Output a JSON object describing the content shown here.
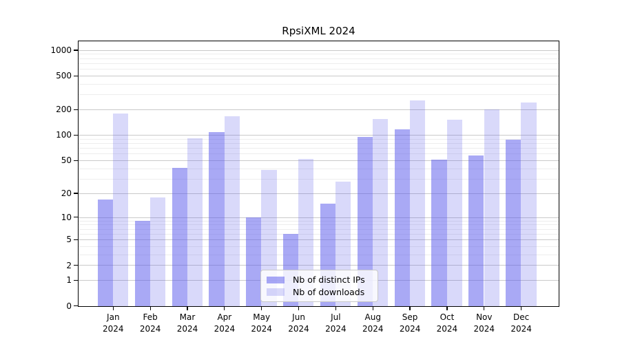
{
  "chart_data": {
    "type": "bar",
    "title": "RpsiXML 2024",
    "year": "2024",
    "categories": [
      "Jan",
      "Feb",
      "Mar",
      "Apr",
      "May",
      "Jun",
      "Jul",
      "Aug",
      "Sep",
      "Oct",
      "Nov",
      "Dec"
    ],
    "series": [
      {
        "name": "Nb of distinct IPs",
        "color": "rgba(90,90,235,0.52)",
        "values": [
          17,
          9,
          41,
          109,
          10,
          6,
          15,
          96,
          118,
          51,
          58,
          89
        ]
      },
      {
        "name": "Nb of downloads",
        "color": "rgba(90,90,235,0.23)",
        "values": [
          180,
          18,
          93,
          167,
          39,
          52,
          28,
          156,
          260,
          153,
          204,
          245
        ]
      }
    ],
    "yscale": "log1p",
    "ylim": [
      0,
      1265
    ],
    "yticks": [
      0,
      1,
      2,
      5,
      10,
      20,
      50,
      100,
      200,
      500,
      1000
    ],
    "minor_ticks": [
      3,
      4,
      6,
      7,
      8,
      9,
      30,
      40,
      60,
      70,
      80,
      90,
      300,
      400,
      600,
      700,
      800,
      900
    ],
    "grid": "horizontal",
    "legend_position": "lower-center-inside",
    "colors": {
      "major_grid": "#c9c9c9",
      "minor_grid": "#ededed",
      "axis": "#000000"
    }
  }
}
